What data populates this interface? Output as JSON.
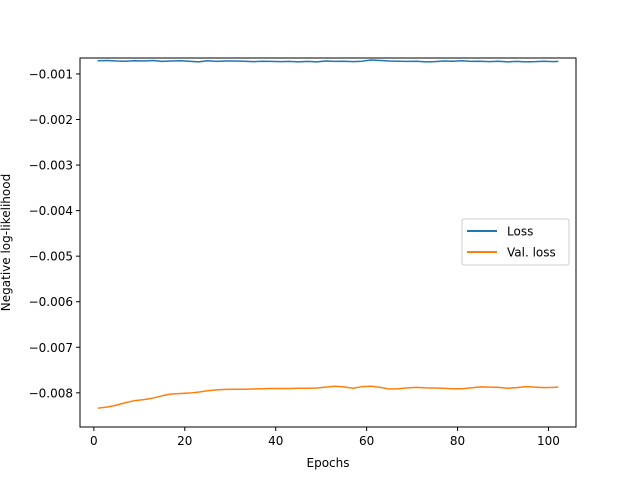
{
  "chart_data": {
    "type": "line",
    "title": "",
    "xlabel": "Epochs",
    "ylabel": "Negative log-likelihood",
    "xlim": [
      -3.05,
      106.05
    ],
    "ylim": [
      -0.00875,
      -0.00065
    ],
    "xticks": [
      0,
      20,
      40,
      60,
      80,
      100
    ],
    "xtick_labels": [
      "0",
      "20",
      "40",
      "60",
      "80",
      "100"
    ],
    "yticks": [
      -0.001,
      -0.002,
      -0.003,
      -0.004,
      -0.005,
      -0.006,
      -0.007,
      -0.008
    ],
    "ytick_labels": [
      "−0.001",
      "−0.002",
      "−0.003",
      "−0.004",
      "−0.005",
      "−0.006",
      "−0.007",
      "−0.008"
    ],
    "grid": false,
    "legend_position": "center-right",
    "series": [
      {
        "name": "Loss",
        "color": "#1f77b4",
        "points": [
          [
            1,
            -0.00071
          ],
          [
            3,
            -0.000705
          ],
          [
            5,
            -0.000715
          ],
          [
            7,
            -0.00072
          ],
          [
            9,
            -0.00071
          ],
          [
            11,
            -0.000715
          ],
          [
            13,
            -0.000705
          ],
          [
            15,
            -0.000725
          ],
          [
            17,
            -0.000715
          ],
          [
            19,
            -0.00071
          ],
          [
            21,
            -0.00072
          ],
          [
            23,
            -0.000735
          ],
          [
            25,
            -0.00071
          ],
          [
            27,
            -0.000725
          ],
          [
            29,
            -0.000715
          ],
          [
            31,
            -0.000715
          ],
          [
            33,
            -0.00072
          ],
          [
            35,
            -0.00073
          ],
          [
            37,
            -0.00072
          ],
          [
            39,
            -0.000725
          ],
          [
            41,
            -0.00073
          ],
          [
            43,
            -0.000725
          ],
          [
            45,
            -0.000735
          ],
          [
            47,
            -0.000725
          ],
          [
            49,
            -0.000735
          ],
          [
            51,
            -0.000715
          ],
          [
            53,
            -0.000725
          ],
          [
            55,
            -0.00072
          ],
          [
            57,
            -0.00073
          ],
          [
            59,
            -0.00072
          ],
          [
            61,
            -0.000695
          ],
          [
            63,
            -0.000705
          ],
          [
            65,
            -0.000715
          ],
          [
            67,
            -0.00072
          ],
          [
            69,
            -0.000725
          ],
          [
            71,
            -0.00072
          ],
          [
            73,
            -0.000735
          ],
          [
            75,
            -0.00073
          ],
          [
            77,
            -0.000715
          ],
          [
            79,
            -0.00072
          ],
          [
            81,
            -0.00071
          ],
          [
            83,
            -0.000725
          ],
          [
            85,
            -0.00072
          ],
          [
            87,
            -0.00073
          ],
          [
            89,
            -0.00072
          ],
          [
            91,
            -0.000735
          ],
          [
            93,
            -0.000725
          ],
          [
            95,
            -0.000735
          ],
          [
            97,
            -0.00073
          ],
          [
            99,
            -0.00072
          ],
          [
            101,
            -0.00073
          ],
          [
            102,
            -0.000725
          ]
        ]
      },
      {
        "name": "Val. loss",
        "color": "#ff7f0e",
        "points": [
          [
            1,
            -0.008335
          ],
          [
            3,
            -0.00831
          ],
          [
            5,
            -0.00827
          ],
          [
            7,
            -0.008215
          ],
          [
            9,
            -0.00817
          ],
          [
            11,
            -0.00815
          ],
          [
            13,
            -0.008115
          ],
          [
            15,
            -0.008065
          ],
          [
            17,
            -0.008025
          ],
          [
            19,
            -0.008015
          ],
          [
            21,
            -0.008005
          ],
          [
            23,
            -0.007985
          ],
          [
            25,
            -0.007955
          ],
          [
            27,
            -0.007935
          ],
          [
            29,
            -0.007925
          ],
          [
            31,
            -0.00792
          ],
          [
            33,
            -0.00792
          ],
          [
            35,
            -0.007915
          ],
          [
            37,
            -0.00791
          ],
          [
            39,
            -0.007905
          ],
          [
            41,
            -0.007905
          ],
          [
            43,
            -0.007905
          ],
          [
            45,
            -0.0079
          ],
          [
            47,
            -0.0079
          ],
          [
            49,
            -0.007895
          ],
          [
            51,
            -0.007875
          ],
          [
            53,
            -0.007855
          ],
          [
            55,
            -0.00787
          ],
          [
            57,
            -0.0079
          ],
          [
            59,
            -0.007865
          ],
          [
            61,
            -0.007855
          ],
          [
            63,
            -0.00788
          ],
          [
            65,
            -0.007915
          ],
          [
            67,
            -0.00791
          ],
          [
            69,
            -0.00789
          ],
          [
            71,
            -0.00788
          ],
          [
            73,
            -0.00789
          ],
          [
            75,
            -0.007895
          ],
          [
            77,
            -0.0079
          ],
          [
            79,
            -0.00791
          ],
          [
            81,
            -0.00791
          ],
          [
            83,
            -0.00789
          ],
          [
            85,
            -0.00787
          ],
          [
            87,
            -0.007875
          ],
          [
            89,
            -0.00788
          ],
          [
            91,
            -0.0079
          ],
          [
            93,
            -0.007885
          ],
          [
            95,
            -0.007865
          ],
          [
            97,
            -0.007875
          ],
          [
            99,
            -0.007885
          ],
          [
            101,
            -0.00788
          ],
          [
            102,
            -0.007875
          ]
        ]
      }
    ]
  }
}
